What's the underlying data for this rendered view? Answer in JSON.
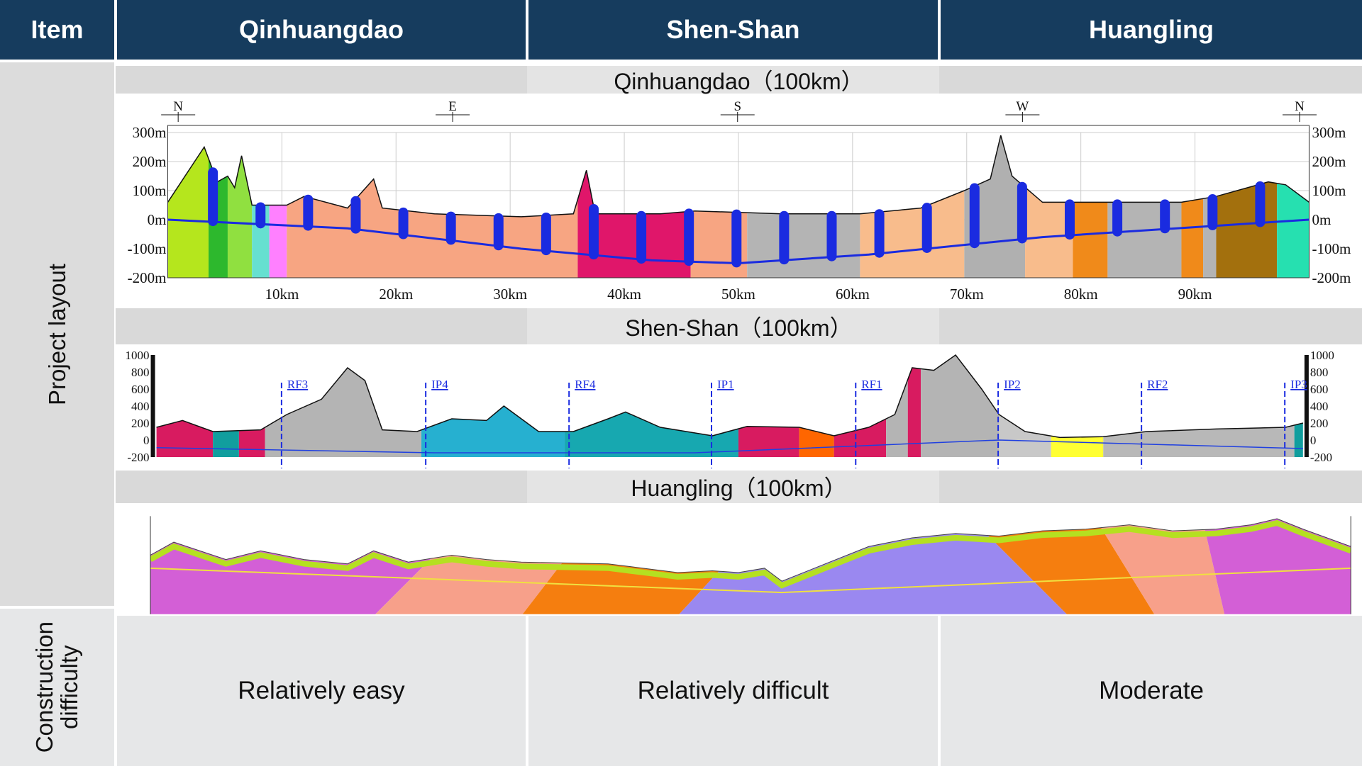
{
  "header": {
    "columns": [
      "Item",
      "Qinhuangdao",
      "Shen-Shan",
      "Huangling"
    ]
  },
  "rows": [
    {
      "label": "Project layout",
      "profiles": [
        {
          "title": "Qinhuangdao（100km）",
          "y_labels": [
            "300m",
            "200m",
            "100m",
            "0m",
            "-100m",
            "-200m"
          ],
          "x_labels": [
            "10km",
            "20km",
            "30km",
            "40km",
            "50km",
            "60km",
            "70km",
            "80km",
            "90km"
          ],
          "directions": [
            "N",
            "E",
            "S",
            "W",
            "N"
          ]
        },
        {
          "title": "Shen-Shan（100km）",
          "y_labels": [
            "1000",
            "800",
            "600",
            "400",
            "200",
            "0",
            "-200"
          ],
          "markers": [
            "RF3",
            "IP4",
            "RF4",
            "IP1",
            "RF1",
            "IP2",
            "RF2",
            "IP3"
          ]
        },
        {
          "title": "Huangling（100km）"
        }
      ]
    },
    {
      "label": "Construction difficulty",
      "values": [
        "Relatively easy",
        "Relatively difficult",
        "Moderate"
      ]
    }
  ]
}
